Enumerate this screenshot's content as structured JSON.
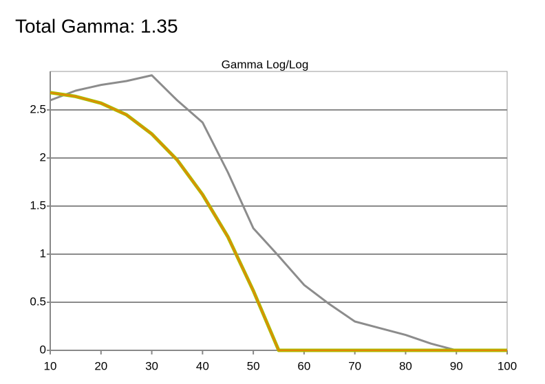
{
  "header": {
    "title": "Total Gamma: 1.35"
  },
  "chart_data": {
    "type": "line",
    "title": "Gamma Log/Log",
    "x": [
      10,
      15,
      20,
      25,
      30,
      35,
      40,
      45,
      50,
      55,
      60,
      65,
      70,
      75,
      80,
      85,
      90,
      95,
      100
    ],
    "series": [
      {
        "color": "#8c8c8c",
        "values": [
          2.6,
          2.7,
          2.76,
          2.8,
          2.86,
          2.6,
          2.37,
          1.85,
          1.27,
          0.98,
          0.68,
          0.48,
          0.3,
          0.23,
          0.16,
          0.07,
          0,
          0,
          0
        ]
      },
      {
        "color": "#a6c000",
        "values": [
          2.68,
          2.64,
          2.57,
          2.45,
          2.25,
          1.98,
          1.62,
          1.18,
          0.62,
          0,
          0,
          0,
          0,
          0,
          0,
          0,
          0,
          0,
          0
        ]
      },
      {
        "color": "#e08a00",
        "values": [
          2.68,
          2.64,
          2.57,
          2.45,
          2.25,
          1.98,
          1.62,
          1.18,
          0.62,
          0,
          0,
          0,
          0,
          0,
          0,
          0,
          0,
          0,
          0
        ]
      }
    ],
    "xlim": [
      10,
      100
    ],
    "xticks": [
      10,
      20,
      30,
      40,
      50,
      60,
      70,
      80,
      90,
      100
    ],
    "ylim": [
      0,
      2.9
    ],
    "yticks": [
      0,
      0.5,
      1,
      1.5,
      2,
      2.5
    ],
    "grid": true
  }
}
